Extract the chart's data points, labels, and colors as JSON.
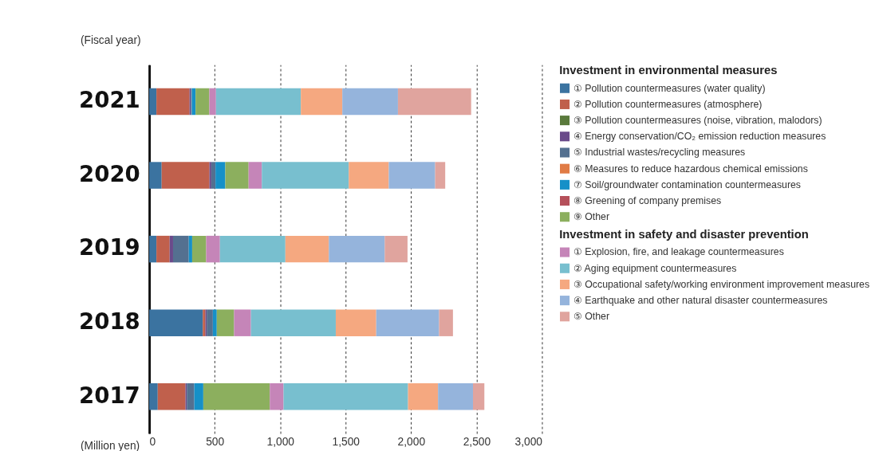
{
  "chart_data": {
    "type": "bar",
    "orientation": "horizontal",
    "stacked": true,
    "categories": [
      "2021",
      "2020",
      "2019",
      "2018",
      "2017"
    ],
    "ylabel": "(Fiscal year)",
    "xlabel": "(Million yen)",
    "legend_title": [
      "Investment in environmental measures",
      "Investment in safety and disaster prevention"
    ],
    "xlim": [
      0,
      3000
    ],
    "xticks": [
      0,
      500,
      {
        "value": 1000,
        "label": "1,000"
      },
      {
        "value": 1500,
        "label": "1,500"
      },
      {
        "value": 2000,
        "label": "2,000"
      },
      {
        "value": 2500,
        "label": "2,500"
      },
      {
        "value": 3000,
        "label": "3,000"
      }
    ],
    "grid": "x",
    "legend": "right",
    "series": [
      {
        "name": "① Pollution countermeasures (water quality)",
        "color": "#3b73a0",
        "values": [
          55,
          95,
          55,
          409,
          65
        ]
      },
      {
        "name": "② Pollution countermeasures (atmosphere)",
        "color": "#c0604c",
        "values": [
          253,
          365,
          101,
          20,
          212
        ]
      },
      {
        "name": "③ Pollution countermeasures (noise, vibration, malodors)",
        "color": "#5a7a3c",
        "values": [
          0,
          0,
          0,
          0,
          0
        ]
      },
      {
        "name": "④ Energy conservation/CO₂ emission reduction measures",
        "color": "#6a4a8a",
        "values": [
          10,
          14,
          26,
          10,
          10
        ]
      },
      {
        "name": "⑤ Industrial wastes/recycling measures",
        "color": "#547090",
        "values": [
          8,
          32,
          120,
          47,
          57
        ]
      },
      {
        "name": "⑥ Measures to reduce hazardous chemical emissions",
        "color": "#e07b45",
        "values": [
          0,
          0,
          0,
          0,
          0
        ]
      },
      {
        "name": "⑦ Soil/groundwater contamination countermeasures",
        "color": "#1690c8",
        "values": [
          28,
          75,
          26,
          30,
          69
        ]
      },
      {
        "name": "⑧ Greening of company premises",
        "color": "#b5505a",
        "values": [
          0,
          0,
          0,
          0,
          0
        ]
      },
      {
        "name": "⑨ Other",
        "color": "#8caf5e",
        "values": [
          105,
          178,
          107,
          132,
          508
        ]
      },
      {
        "name": "① Explosion, fire, and leakage countermeasures",
        "color": "#c585b8",
        "values": [
          51,
          101,
          105,
          129,
          105
        ]
      },
      {
        "name": "② Aging equipment countermeasures",
        "color": "#78bfcf",
        "values": [
          648,
          664,
          500,
          648,
          951
        ]
      },
      {
        "name": "③ Occupational safety/working environment improvement measures",
        "color": "#f5a880",
        "values": [
          317,
          306,
          332,
          309,
          229
        ]
      },
      {
        "name": "④ Earthquake and other natural disaster countermeasures",
        "color": "#95b4dc",
        "values": [
          425,
          354,
          427,
          480,
          267
        ]
      },
      {
        "name": "⑤ Other",
        "color": "#e0a49e",
        "values": [
          559,
          77,
          174,
          106,
          87
        ]
      }
    ]
  }
}
